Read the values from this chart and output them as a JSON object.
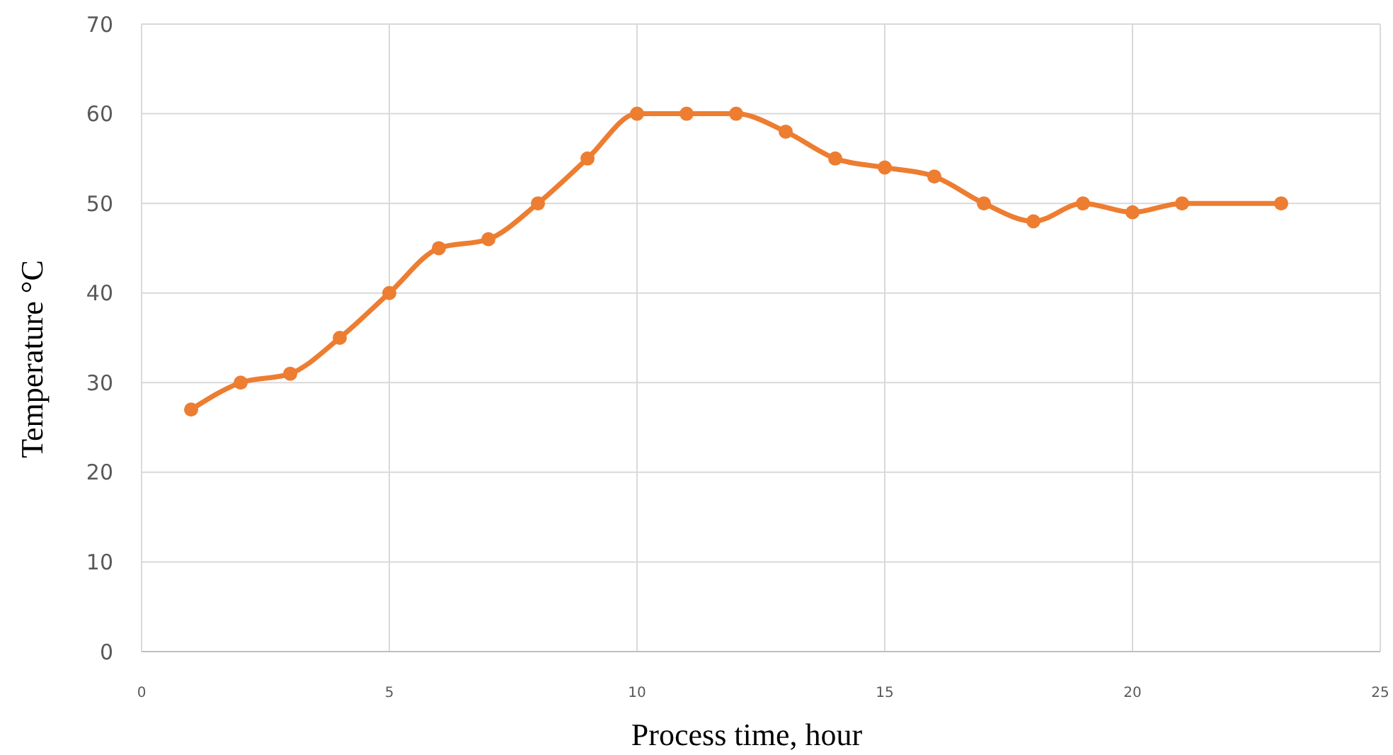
{
  "chart_data": {
    "type": "line",
    "xlabel": "Process time, hour",
    "ylabel": "Temperature °C",
    "x": [
      1,
      2,
      3,
      4,
      5,
      6,
      7,
      8,
      9,
      10,
      11,
      12,
      13,
      14,
      15,
      16,
      17,
      18,
      19,
      20,
      21,
      23
    ],
    "series": [
      {
        "color": "#ed7d31",
        "values": [
          27,
          30,
          31,
          35,
          40,
          45,
          46,
          50,
          55,
          60,
          60,
          60,
          58,
          55,
          54,
          53,
          50,
          48,
          50,
          49,
          50,
          50
        ]
      }
    ],
    "xlim": [
      0,
      25
    ],
    "xticks": [
      0,
      5,
      10,
      15,
      20,
      25
    ],
    "ylim": [
      0,
      70
    ],
    "yticks": [
      0,
      10,
      20,
      30,
      40,
      50,
      60,
      70
    ],
    "grid": true,
    "marker": "circle",
    "line_style": "solid"
  }
}
